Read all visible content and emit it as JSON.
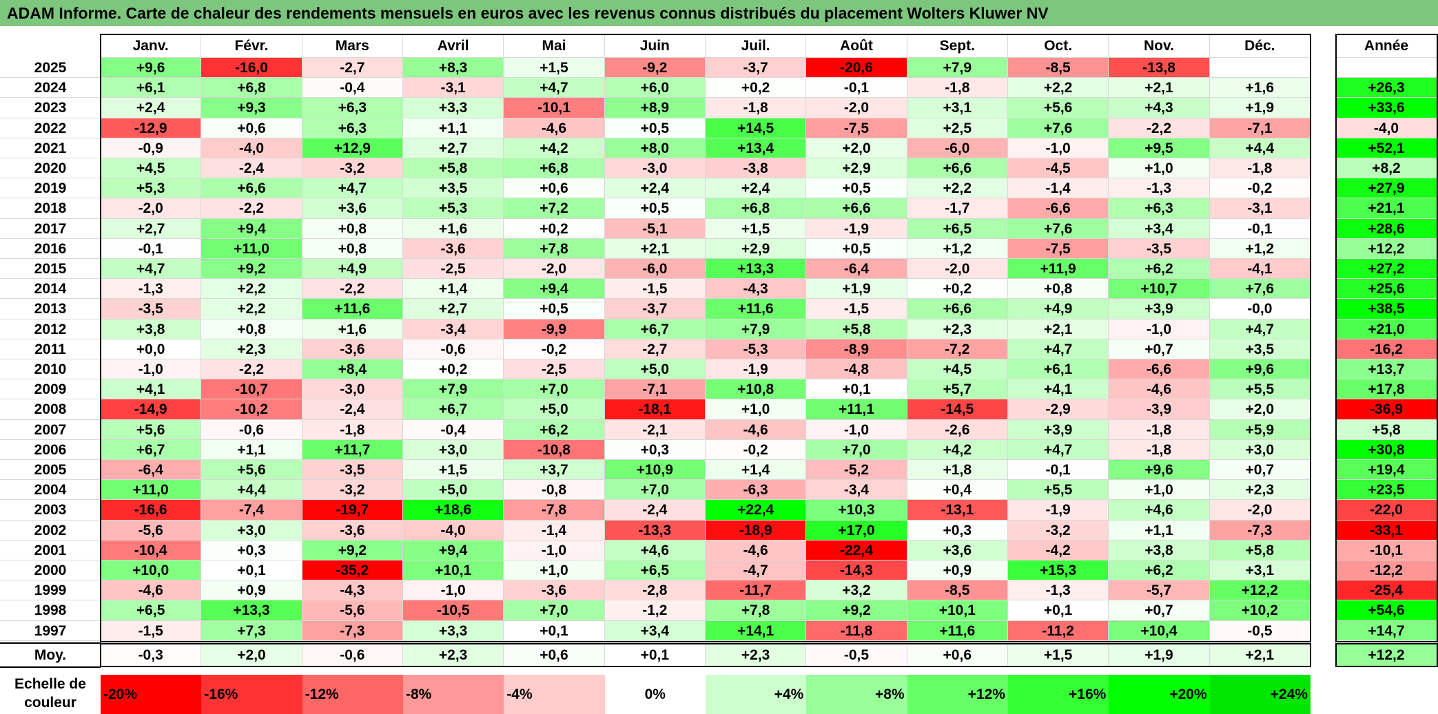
{
  "title": "ADAM Informe. Carte de chaleur des rendements mensuels en euros avec les revenus connus distribués du placement Wolters Kluwer NV",
  "chart_data": {
    "type": "heatmap",
    "months": [
      "Janv.",
      "Févr.",
      "Mars",
      "Avril",
      "Mai",
      "Juin",
      "Juil.",
      "Août",
      "Sept.",
      "Oct.",
      "Nov.",
      "Déc."
    ],
    "year_header": "Année",
    "rows": [
      {
        "label": "2025",
        "values": [
          "+9,6",
          "-16,0",
          "-2,7",
          "+8,3",
          "+1,5",
          "-9,2",
          "-3,7",
          "-20,6",
          "+7,9",
          "-8,5",
          "-13,8",
          ""
        ],
        "year": ""
      },
      {
        "label": "2024",
        "values": [
          "+6,1",
          "+6,8",
          "-0,4",
          "-3,1",
          "+4,7",
          "+6,0",
          "+0,2",
          "-0,1",
          "-1,8",
          "+2,2",
          "+2,1",
          "+1,6"
        ],
        "year": "+26,3"
      },
      {
        "label": "2023",
        "values": [
          "+2,4",
          "+9,3",
          "+6,3",
          "+3,3",
          "-10,1",
          "+8,9",
          "-1,8",
          "-2,0",
          "+3,1",
          "+5,6",
          "+4,3",
          "+1,9"
        ],
        "year": "+33,6"
      },
      {
        "label": "2022",
        "values": [
          "-12,9",
          "+0,6",
          "+6,3",
          "+1,1",
          "-4,6",
          "+0,5",
          "+14,5",
          "-7,5",
          "+2,5",
          "+7,6",
          "-2,2",
          "-7,1"
        ],
        "year": "-4,0"
      },
      {
        "label": "2021",
        "values": [
          "-0,9",
          "-4,0",
          "+12,9",
          "+2,7",
          "+4,2",
          "+8,0",
          "+13,4",
          "+2,0",
          "-6,0",
          "-1,0",
          "+9,5",
          "+4,4"
        ],
        "year": "+52,1"
      },
      {
        "label": "2020",
        "values": [
          "+4,5",
          "-2,4",
          "-3,2",
          "+5,8",
          "+6,8",
          "-3,0",
          "-3,8",
          "+2,9",
          "+6,6",
          "-4,5",
          "+1,0",
          "-1,8"
        ],
        "year": "+8,2"
      },
      {
        "label": "2019",
        "values": [
          "+5,3",
          "+6,6",
          "+4,7",
          "+3,5",
          "+0,6",
          "+2,4",
          "+2,4",
          "+0,5",
          "+2,2",
          "-1,4",
          "-1,3",
          "-0,2"
        ],
        "year": "+27,9"
      },
      {
        "label": "2018",
        "values": [
          "-2,0",
          "-2,2",
          "+3,6",
          "+5,3",
          "+7,2",
          "+0,5",
          "+6,8",
          "+6,6",
          "-1,7",
          "-6,6",
          "+6,3",
          "-3,1"
        ],
        "year": "+21,1"
      },
      {
        "label": "2017",
        "values": [
          "+2,7",
          "+9,4",
          "+0,8",
          "+1,6",
          "+0,2",
          "-5,1",
          "+1,5",
          "-1,9",
          "+6,5",
          "+7,6",
          "+3,4",
          "-0,1"
        ],
        "year": "+28,6"
      },
      {
        "label": "2016",
        "values": [
          "-0,1",
          "+11,0",
          "+0,8",
          "-3,6",
          "+7,8",
          "+2,1",
          "+2,9",
          "+0,5",
          "+1,2",
          "-7,5",
          "-3,5",
          "+1,2"
        ],
        "year": "+12,2"
      },
      {
        "label": "2015",
        "values": [
          "+4,7",
          "+9,2",
          "+4,9",
          "-2,5",
          "-2,0",
          "-6,0",
          "+13,3",
          "-6,4",
          "-2,0",
          "+11,9",
          "+6,2",
          "-4,1"
        ],
        "year": "+27,2"
      },
      {
        "label": "2014",
        "values": [
          "-1,3",
          "+2,2",
          "-2,2",
          "+1,4",
          "+9,4",
          "-1,5",
          "-4,3",
          "+1,9",
          "+0,2",
          "+0,8",
          "+10,7",
          "+7,6"
        ],
        "year": "+25,6"
      },
      {
        "label": "2013",
        "values": [
          "-3,5",
          "+2,2",
          "+11,6",
          "+2,7",
          "+0,5",
          "-3,7",
          "+11,6",
          "-1,5",
          "+6,6",
          "+4,9",
          "+3,9",
          "-0,0"
        ],
        "year": "+38,5"
      },
      {
        "label": "2012",
        "values": [
          "+3,8",
          "+0,8",
          "+1,6",
          "-3,4",
          "-9,9",
          "+6,7",
          "+7,9",
          "+5,8",
          "+2,3",
          "+2,1",
          "-1,0",
          "+4,7"
        ],
        "year": "+21,0"
      },
      {
        "label": "2011",
        "values": [
          "+0,0",
          "+2,3",
          "-3,6",
          "-0,6",
          "-0,2",
          "-2,7",
          "-5,3",
          "-8,9",
          "-7,2",
          "+4,7",
          "+0,7",
          "+3,5"
        ],
        "year": "-16,2"
      },
      {
        "label": "2010",
        "values": [
          "-1,0",
          "-2,2",
          "+8,4",
          "+0,2",
          "-2,5",
          "+5,0",
          "-1,9",
          "-4,8",
          "+4,5",
          "+6,1",
          "-6,6",
          "+9,6"
        ],
        "year": "+13,7"
      },
      {
        "label": "2009",
        "values": [
          "+4,1",
          "-10,7",
          "-3,0",
          "+7,9",
          "+7,0",
          "-7,1",
          "+10,8",
          "+0,1",
          "+5,7",
          "+4,1",
          "-4,6",
          "+5,5"
        ],
        "year": "+17,8"
      },
      {
        "label": "2008",
        "values": [
          "-14,9",
          "-10,2",
          "-2,4",
          "+6,7",
          "+5,0",
          "-18,1",
          "+1,0",
          "+11,1",
          "-14,5",
          "-2,9",
          "-3,9",
          "+2,0"
        ],
        "year": "-36,9"
      },
      {
        "label": "2007",
        "values": [
          "+5,6",
          "-0,6",
          "-1,8",
          "-0,4",
          "+6,2",
          "-2,1",
          "-4,6",
          "-1,0",
          "-2,6",
          "+3,9",
          "-1,8",
          "+5,9"
        ],
        "year": "+5,8"
      },
      {
        "label": "2006",
        "values": [
          "+6,7",
          "+1,1",
          "+11,7",
          "+3,0",
          "-10,8",
          "+0,3",
          "-0,2",
          "+7,0",
          "+4,2",
          "+4,7",
          "-1,8",
          "+3,0"
        ],
        "year": "+30,8"
      },
      {
        "label": "2005",
        "values": [
          "-6,4",
          "+5,6",
          "-3,5",
          "+1,5",
          "+3,7",
          "+10,9",
          "+1,4",
          "-5,2",
          "+1,8",
          "-0,1",
          "+9,6",
          "+0,7"
        ],
        "year": "+19,4"
      },
      {
        "label": "2004",
        "values": [
          "+11,0",
          "+4,4",
          "-3,2",
          "+5,0",
          "-0,8",
          "+7,0",
          "-6,3",
          "-3,4",
          "+0,4",
          "+5,5",
          "+1,0",
          "+2,3"
        ],
        "year": "+23,5"
      },
      {
        "label": "2003",
        "values": [
          "-16,6",
          "-7,4",
          "-19,7",
          "+18,6",
          "-7,8",
          "-2,4",
          "+22,4",
          "+10,3",
          "-13,1",
          "-1,9",
          "+4,6",
          "-2,0"
        ],
        "year": "-22,0"
      },
      {
        "label": "2002",
        "values": [
          "-5,6",
          "+3,0",
          "-3,6",
          "-4,0",
          "-1,4",
          "-13,3",
          "-18,9",
          "+17,0",
          "+0,3",
          "-3,2",
          "+1,1",
          "-7,3"
        ],
        "year": "-33,1"
      },
      {
        "label": "2001",
        "values": [
          "-10,4",
          "+0,3",
          "+9,2",
          "+9,4",
          "-1,0",
          "+4,6",
          "-4,6",
          "-22,4",
          "+3,6",
          "-4,2",
          "+3,8",
          "+5,8"
        ],
        "year": "-10,1"
      },
      {
        "label": "2000",
        "values": [
          "+10,0",
          "+0,1",
          "-35,2",
          "+10,1",
          "+1,0",
          "+6,5",
          "-4,7",
          "-14,3",
          "+0,9",
          "+15,3",
          "+6,2",
          "+3,1"
        ],
        "year": "-12,2"
      },
      {
        "label": "1999",
        "values": [
          "-4,6",
          "+0,9",
          "-4,3",
          "-1,0",
          "-3,6",
          "-2,8",
          "-11,7",
          "+3,2",
          "-8,5",
          "-1,3",
          "-5,7",
          "+12,2"
        ],
        "year": "-25,4"
      },
      {
        "label": "1998",
        "values": [
          "+6,5",
          "+13,3",
          "-5,6",
          "-10,5",
          "+7,0",
          "-1,2",
          "+7,8",
          "+9,2",
          "+10,1",
          "+0,1",
          "+0,7",
          "+10,2"
        ],
        "year": "+54,6"
      },
      {
        "label": "1997",
        "values": [
          "-1,5",
          "+7,3",
          "-7,3",
          "+3,3",
          "+0,1",
          "+3,4",
          "+14,1",
          "-11,8",
          "+11,6",
          "-11,2",
          "+10,4",
          "-0,5"
        ],
        "year": "+14,7"
      }
    ],
    "average": {
      "label": "Moy.",
      "values": [
        "-0,3",
        "+2,0",
        "-0,6",
        "+2,3",
        "+0,6",
        "+0,1",
        "+2,3",
        "-0,5",
        "+0,6",
        "+1,5",
        "+1,9",
        "+2,1"
      ],
      "year": "+12,2"
    },
    "scale": {
      "label": "Echelle de couleur",
      "stops": [
        {
          "label": "-20%",
          "color": "#ff0000"
        },
        {
          "label": "-16%",
          "color": "#ff3333"
        },
        {
          "label": "-12%",
          "color": "#ff6666"
        },
        {
          "label": "-8%",
          "color": "#ff9999"
        },
        {
          "label": "-4%",
          "color": "#ffcccc"
        },
        {
          "label": "0%",
          "color": "#ffffff"
        },
        {
          "label": "+4%",
          "color": "#ccffcc"
        },
        {
          "label": "+8%",
          "color": "#99ff99"
        },
        {
          "label": "+12%",
          "color": "#66ff66"
        },
        {
          "label": "+16%",
          "color": "#33ff33"
        },
        {
          "label": "+20%",
          "color": "#00ff00"
        },
        {
          "label": "+24%",
          "color": "#00e600"
        }
      ]
    }
  },
  "colors": {
    "title_bg": "#7dc67d",
    "negative": "#ff0000",
    "positive": "#00ff00",
    "neutral": "#ffffff"
  }
}
